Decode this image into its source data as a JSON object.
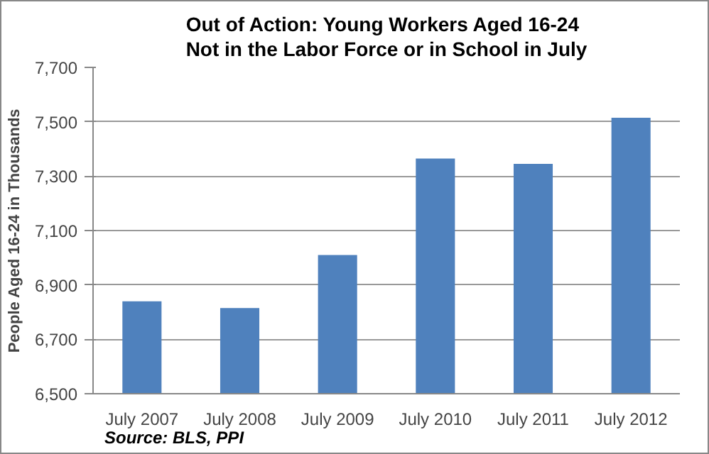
{
  "chart_data": {
    "type": "bar",
    "title": "Out of Action: Young Workers Aged 16-24 Not in the Labor Force or in School in July",
    "ylabel": "People Aged 16-24 in Thousands",
    "categories": [
      "July 2007",
      "July 2008",
      "July 2009",
      "July 2010",
      "July 2011",
      "July 2012"
    ],
    "values": [
      6840,
      6815,
      7010,
      7365,
      7345,
      7515
    ],
    "color": "#4f81bd",
    "ylim": [
      6500,
      7700
    ],
    "yticks": [
      {
        "value": 6500,
        "label": "6,500"
      },
      {
        "value": 6700,
        "label": "6,700"
      },
      {
        "value": 6900,
        "label": "6,900"
      },
      {
        "value": 7100,
        "label": "7,100"
      },
      {
        "value": 7300,
        "label": "7,300"
      },
      {
        "value": 7500,
        "label": "7,500"
      },
      {
        "value": 7700,
        "label": "7,700"
      }
    ],
    "grid": "y",
    "annotations": [
      "Source: BLS, PPI"
    ]
  }
}
